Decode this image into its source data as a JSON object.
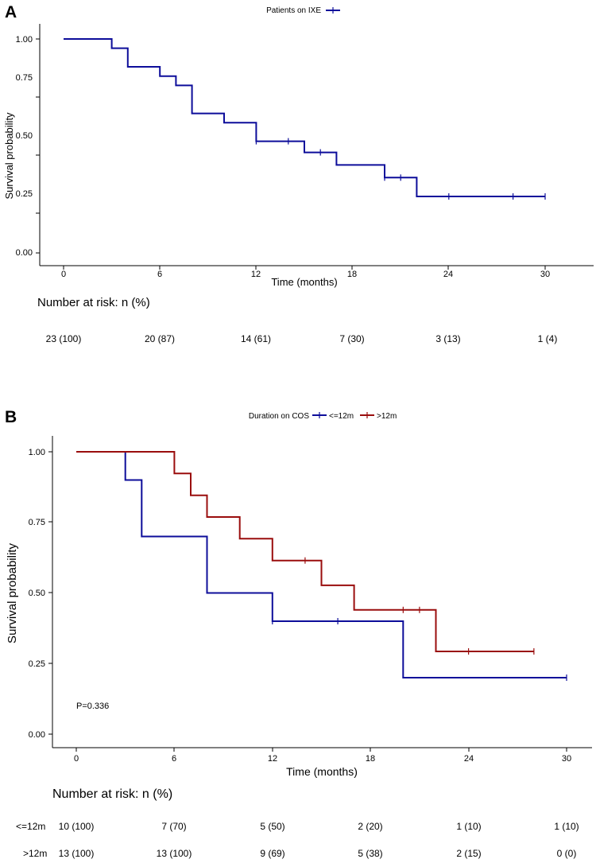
{
  "colors": {
    "blue": "#0d0d9a",
    "red": "#9a0d0d",
    "axis": "#000000"
  },
  "chart_data": [
    {
      "type": "line",
      "panel_label": "A",
      "title": "",
      "xlabel": "Time (months)",
      "ylabel": "Survival probability",
      "xlim": [
        0,
        30
      ],
      "ylim": [
        0,
        1
      ],
      "xticks": [
        "0",
        "6",
        "12",
        "18",
        "24",
        "30"
      ],
      "yticks": [
        "0.00",
        "0.25",
        "0.50",
        "0.75",
        "1.00"
      ],
      "legend_title": "Patients on IXE",
      "pvalue": "",
      "series": [
        {
          "name": "",
          "color": "#0d0d9a",
          "steps": [
            [
              0,
              1.0
            ],
            [
              3,
              0.957
            ],
            [
              4,
              0.87
            ],
            [
              6,
              0.826
            ],
            [
              7,
              0.783
            ],
            [
              8,
              0.652
            ],
            [
              10,
              0.609
            ],
            [
              12,
              0.522
            ],
            [
              15,
              0.47
            ],
            [
              17,
              0.411
            ],
            [
              20,
              0.352
            ],
            [
              22,
              0.264
            ],
            [
              30,
              0.264
            ]
          ],
          "censor": [
            [
              12,
              0.522
            ],
            [
              14,
              0.522
            ],
            [
              16,
              0.47
            ],
            [
              20,
              0.352
            ],
            [
              21,
              0.352
            ],
            [
              24,
              0.264
            ],
            [
              28,
              0.264
            ],
            [
              30,
              0.264
            ]
          ]
        }
      ],
      "risk_table": {
        "heading": "Number at risk: n (%)",
        "rows": [
          {
            "label": "",
            "values": [
              "23 (100)",
              "20 (87)",
              "14 (61)",
              "7 (30)",
              "3 (13)",
              "1 (4)"
            ]
          }
        ]
      }
    },
    {
      "type": "line",
      "panel_label": "B",
      "title": "",
      "xlabel": "Time (months)",
      "ylabel": "Survival probability",
      "xlim": [
        0,
        30
      ],
      "ylim": [
        0,
        1
      ],
      "xticks": [
        "0",
        "6",
        "12",
        "18",
        "24",
        "30"
      ],
      "yticks": [
        "0.00",
        "0.25",
        "0.50",
        "0.75",
        "1.00"
      ],
      "legend_title": "Duration on COS",
      "pvalue": "P=0.336",
      "series": [
        {
          "name": "<=12m",
          "color": "#0d0d9a",
          "steps": [
            [
              0,
              1.0
            ],
            [
              3,
              0.9
            ],
            [
              4,
              0.7
            ],
            [
              8,
              0.5
            ],
            [
              12,
              0.4
            ],
            [
              20,
              0.2
            ],
            [
              30,
              0.2
            ]
          ],
          "censor": [
            [
              12,
              0.4
            ],
            [
              16,
              0.4
            ],
            [
              30,
              0.2
            ]
          ]
        },
        {
          "name": ">12m",
          "color": "#9a0d0d",
          "steps": [
            [
              0,
              1.0
            ],
            [
              6,
              0.923
            ],
            [
              7,
              0.846
            ],
            [
              8,
              0.769
            ],
            [
              10,
              0.692
            ],
            [
              12,
              0.615
            ],
            [
              15,
              0.527
            ],
            [
              17,
              0.44
            ],
            [
              22,
              0.293
            ],
            [
              28,
              0.293
            ]
          ],
          "censor": [
            [
              14,
              0.615
            ],
            [
              20,
              0.44
            ],
            [
              21,
              0.44
            ],
            [
              24,
              0.293
            ],
            [
              28,
              0.293
            ]
          ]
        }
      ],
      "risk_table": {
        "heading": "Number at risk: n (%)",
        "rows": [
          {
            "label": "<=12m",
            "values": [
              "10 (100)",
              "7 (70)",
              "5 (50)",
              "2 (20)",
              "1 (10)",
              "1 (10)"
            ]
          },
          {
            "label": ">12m",
            "values": [
              "13 (100)",
              "13 (100)",
              "9 (69)",
              "5 (38)",
              "2 (15)",
              "0 (0)"
            ]
          }
        ]
      }
    }
  ]
}
